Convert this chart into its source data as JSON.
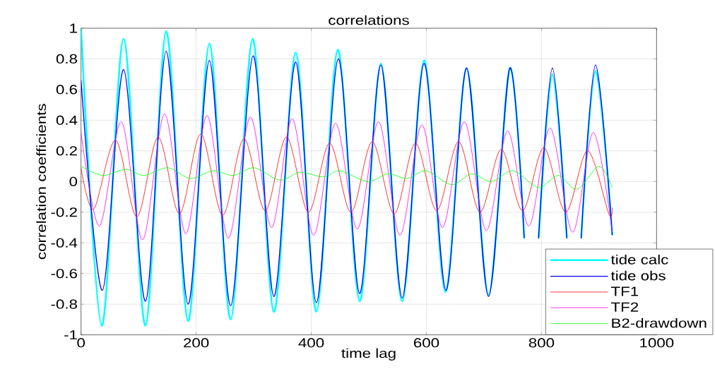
{
  "chart_data": {
    "type": "line",
    "title": "correlations",
    "xlabel": "time lag",
    "ylabel": "correlation coefficients",
    "xlim": [
      0,
      1000
    ],
    "ylim": [
      -1,
      1
    ],
    "xticks": [
      0,
      200,
      400,
      600,
      800,
      1000
    ],
    "yticks": [
      -1,
      -0.8,
      -0.6,
      -0.4,
      -0.2,
      0,
      0.2,
      0.4,
      0.6,
      0.8,
      1
    ],
    "grid": true,
    "legend": "bottom right",
    "series": [
      {
        "name": "tide calc",
        "color": "#00ffff",
        "x": [
          0,
          36,
          74,
          112,
          148,
          186,
          223,
          260,
          298,
          335,
          373,
          409,
          446,
          484,
          521,
          558,
          596,
          633,
          670,
          708,
          745,
          770,
          783,
          795,
          819,
          844,
          857,
          869,
          894,
          923
        ],
        "values": [
          1.0,
          -0.94,
          0.93,
          -0.94,
          0.98,
          -0.91,
          0.9,
          -0.9,
          0.93,
          -0.85,
          0.84,
          -0.85,
          0.86,
          -0.78,
          0.77,
          -0.78,
          0.79,
          -0.72,
          0.74,
          -0.74,
          0.74,
          -0.37,
          null,
          -0.37,
          0.7,
          -0.37,
          null,
          -0.37,
          0.72,
          -0.35
        ]
      },
      {
        "name": "tide obs",
        "color": "#0000ff",
        "x": [
          0,
          37,
          74,
          112,
          148,
          186,
          223,
          260,
          299,
          335,
          373,
          409,
          447,
          484,
          521,
          558,
          596,
          634,
          670,
          708,
          745,
          770,
          783,
          795,
          819,
          844,
          857,
          869,
          894,
          923
        ],
        "values": [
          0.66,
          -0.71,
          0.73,
          -0.78,
          0.85,
          -0.8,
          0.79,
          -0.81,
          0.82,
          -0.75,
          0.78,
          -0.79,
          0.8,
          -0.73,
          0.76,
          -0.76,
          0.77,
          -0.71,
          0.74,
          -0.75,
          0.74,
          -0.37,
          null,
          -0.37,
          0.74,
          -0.37,
          null,
          -0.37,
          0.76,
          -0.35
        ]
      },
      {
        "name": "TF1",
        "color": "#ff0000",
        "x": [
          0,
          22,
          60,
          97,
          134,
          171,
          208,
          246,
          283,
          320,
          357,
          395,
          432,
          469,
          506,
          544,
          581,
          618,
          656,
          693,
          730,
          767,
          804,
          842,
          880,
          917,
          923
        ],
        "values": [
          0.09,
          -0.18,
          0.27,
          -0.23,
          0.29,
          -0.21,
          0.31,
          -0.22,
          0.28,
          -0.19,
          0.29,
          -0.2,
          0.25,
          -0.2,
          0.26,
          -0.21,
          0.25,
          -0.19,
          0.26,
          -0.2,
          0.21,
          -0.19,
          0.22,
          -0.2,
          0.2,
          -0.21,
          -0.17
        ]
      },
      {
        "name": "TF2",
        "color": "#ff00ff",
        "x": [
          0,
          32,
          70,
          107,
          145,
          182,
          219,
          256,
          294,
          331,
          367,
          404,
          442,
          480,
          517,
          554,
          592,
          628,
          666,
          704,
          741,
          778,
          815,
          854,
          890,
          923
        ],
        "values": [
          0.32,
          -0.29,
          0.39,
          -0.38,
          0.44,
          -0.34,
          0.43,
          -0.37,
          0.42,
          -0.3,
          0.41,
          -0.35,
          0.38,
          -0.31,
          0.39,
          -0.35,
          0.37,
          -0.3,
          0.39,
          -0.32,
          0.33,
          -0.29,
          0.35,
          -0.33,
          0.32,
          -0.33
        ]
      },
      {
        "name": "B2-drawdown",
        "color": "#00ff00",
        "x": [
          0,
          38,
          78,
          109,
          151,
          190,
          229,
          265,
          301,
          345,
          381,
          421,
          450,
          498,
          533,
          567,
          600,
          644,
          679,
          713,
          751,
          795,
          829,
          862,
          900,
          923
        ],
        "values": [
          0.1,
          0.04,
          0.08,
          0.04,
          0.09,
          0.02,
          0.07,
          0.04,
          0.09,
          0.01,
          0.06,
          0.03,
          0.07,
          0.0,
          0.05,
          0.02,
          0.07,
          -0.02,
          0.05,
          0.0,
          0.07,
          -0.04,
          0.04,
          -0.05,
          0.1,
          -0.04
        ]
      }
    ]
  }
}
